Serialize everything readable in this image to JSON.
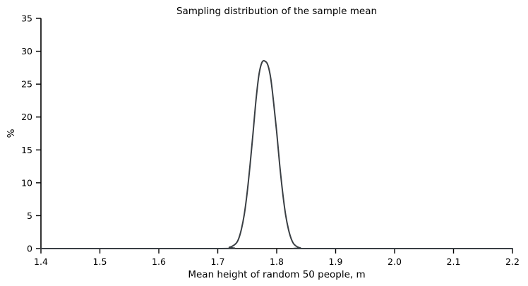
{
  "chart_data": {
    "type": "line",
    "title": "Sampling distribution of the sample mean",
    "xlabel": "Mean height of random 50 people, m",
    "ylabel": "%",
    "xlim": [
      1.4,
      2.2
    ],
    "ylim": [
      0,
      35
    ],
    "x_ticks": [
      1.4,
      1.5,
      1.6,
      1.7,
      1.8,
      1.9,
      2.0,
      2.1,
      2.2
    ],
    "x_tick_labels": [
      "1.4",
      "1.5",
      "1.6",
      "1.7",
      "1.8",
      "1.9",
      "2.0",
      "2.1",
      "2.2"
    ],
    "y_ticks": [
      0,
      5,
      10,
      15,
      20,
      25,
      30,
      35
    ],
    "y_tick_labels": [
      "0",
      "5",
      "10",
      "15",
      "20",
      "25",
      "30",
      "35"
    ],
    "grid": false,
    "line_color": "#3a3f44",
    "series": [
      {
        "x": [
          1.4,
          1.7,
          1.72,
          1.73,
          1.735,
          1.74,
          1.745,
          1.75,
          1.755,
          1.76,
          1.765,
          1.77,
          1.775,
          1.78,
          1.785,
          1.79,
          1.795,
          1.8,
          1.805,
          1.81,
          1.815,
          1.82,
          1.825,
          1.83,
          1.84,
          1.86,
          2.2
        ],
        "y": [
          0.0,
          0.0,
          0.2,
          0.7,
          1.4,
          2.9,
          5.2,
          8.6,
          12.9,
          17.7,
          22.7,
          26.5,
          28.3,
          28.5,
          27.9,
          25.8,
          22.0,
          17.7,
          12.8,
          8.6,
          5.2,
          2.9,
          1.4,
          0.6,
          0.1,
          0.0,
          0.0
        ]
      }
    ]
  }
}
